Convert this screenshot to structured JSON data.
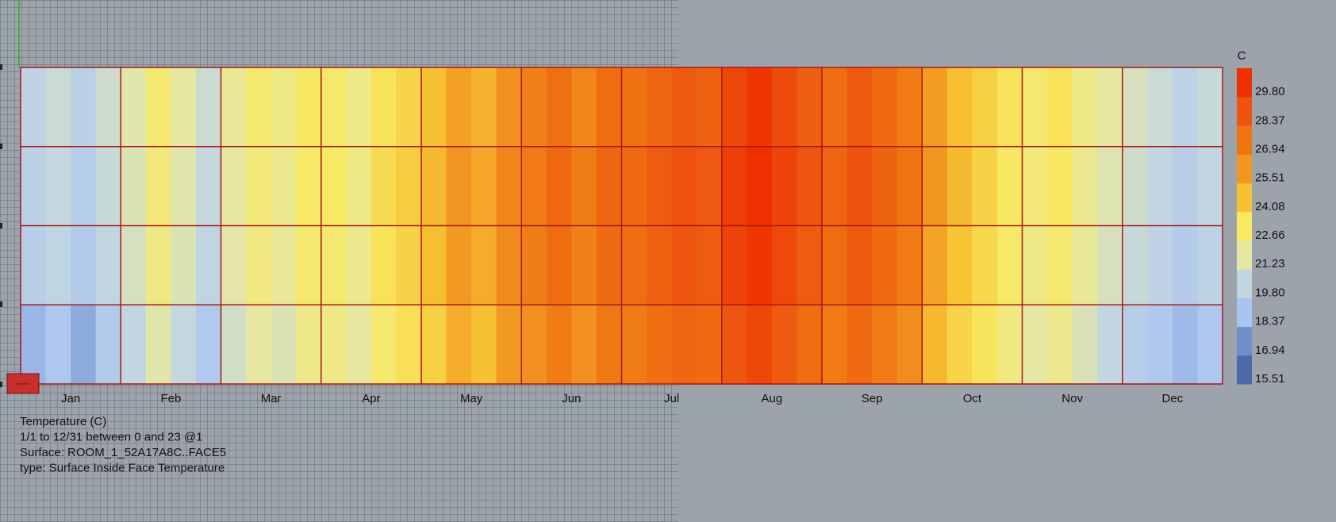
{
  "chart_data": {
    "type": "heatmap",
    "categories": [
      "Jan",
      "Feb",
      "Mar",
      "Apr",
      "May",
      "Jun",
      "Jul",
      "Aug",
      "Sep",
      "Oct",
      "Nov",
      "Dec"
    ],
    "values": [
      [
        19.6,
        20.1,
        19.4,
        20.3,
        21.0,
        22.3,
        21.2,
        20.2,
        21.5,
        22.4,
        21.9,
        22.7,
        22.5,
        21.8,
        22.9,
        23.4,
        24.1,
        25.2,
        24.6,
        25.8,
        26.4,
        27.1,
        26.2,
        27.3,
        27.0,
        27.6,
        28.1,
        27.8,
        28.9,
        29.6,
        28.7,
        27.9,
        27.2,
        28.1,
        27.4,
        26.6,
        25.3,
        24.2,
        23.6,
        22.9,
        22.4,
        22.9,
        21.8,
        21.2,
        20.6,
        20.1,
        19.5,
        20.0
      ],
      [
        19.4,
        19.9,
        19.1,
        20.0,
        20.8,
        22.1,
        21.0,
        19.9,
        21.3,
        22.2,
        21.7,
        22.6,
        22.6,
        21.9,
        23.1,
        23.7,
        24.4,
        25.6,
        25.0,
        26.2,
        26.7,
        27.5,
        26.6,
        27.6,
        27.4,
        28.0,
        28.5,
        28.2,
        29.3,
        29.9,
        29.0,
        28.3,
        27.6,
        28.4,
        27.7,
        26.9,
        25.5,
        24.3,
        23.5,
        22.7,
        22.2,
        22.7,
        21.6,
        20.9,
        20.3,
        19.8,
        19.2,
        19.8
      ],
      [
        19.2,
        19.7,
        18.9,
        19.8,
        20.6,
        21.9,
        20.8,
        19.7,
        21.1,
        22.0,
        21.5,
        22.4,
        22.4,
        21.7,
        22.9,
        23.5,
        24.2,
        25.4,
        24.8,
        26.0,
        26.5,
        27.3,
        26.4,
        27.4,
        27.2,
        27.8,
        28.3,
        28.0,
        29.0,
        29.6,
        28.8,
        28.0,
        27.3,
        28.1,
        27.4,
        26.6,
        25.1,
        24.0,
        23.3,
        22.5,
        21.9,
        22.4,
        21.4,
        20.6,
        20.0,
        19.6,
        19.0,
        19.5
      ],
      [
        18.0,
        18.6,
        17.7,
        18.9,
        19.8,
        21.0,
        19.9,
        18.8,
        20.4,
        21.3,
        20.8,
        21.8,
        21.9,
        21.3,
        22.4,
        23.0,
        23.6,
        24.8,
        24.1,
        25.4,
        25.8,
        26.6,
        25.7,
        26.8,
        26.6,
        27.2,
        27.6,
        27.4,
        28.3,
        28.9,
        28.1,
        27.3,
        26.6,
        27.4,
        26.7,
        25.9,
        24.4,
        23.4,
        22.8,
        22.0,
        21.2,
        21.7,
        20.7,
        19.8,
        19.2,
        18.7,
        18.1,
        18.6
      ]
    ],
    "legend": {
      "title": "C",
      "levels": [
        15.51,
        16.94,
        18.37,
        {
          "value": 19.8,
          "label": "19.80"
        },
        21.23,
        22.66,
        24.08,
        25.51,
        26.94,
        28.37,
        {
          "value": 29.8,
          "label": "29.80"
        }
      ],
      "colors": [
        "#4a6aa8",
        "#6f8fca",
        "#a9c4f0",
        "#c2d6e2",
        "#e6e8a2",
        "#f8e862",
        "#f6c232",
        "#f29622",
        "#ef7412",
        "#ee5410",
        "#ee3000"
      ]
    },
    "notes": [
      "Temperature (C)",
      "1/1 to 12/31 between 0 and 23 @1",
      "Surface: ROOM_1_52A17A8C..FACE5",
      "type: Surface Inside Face Temperature"
    ]
  }
}
